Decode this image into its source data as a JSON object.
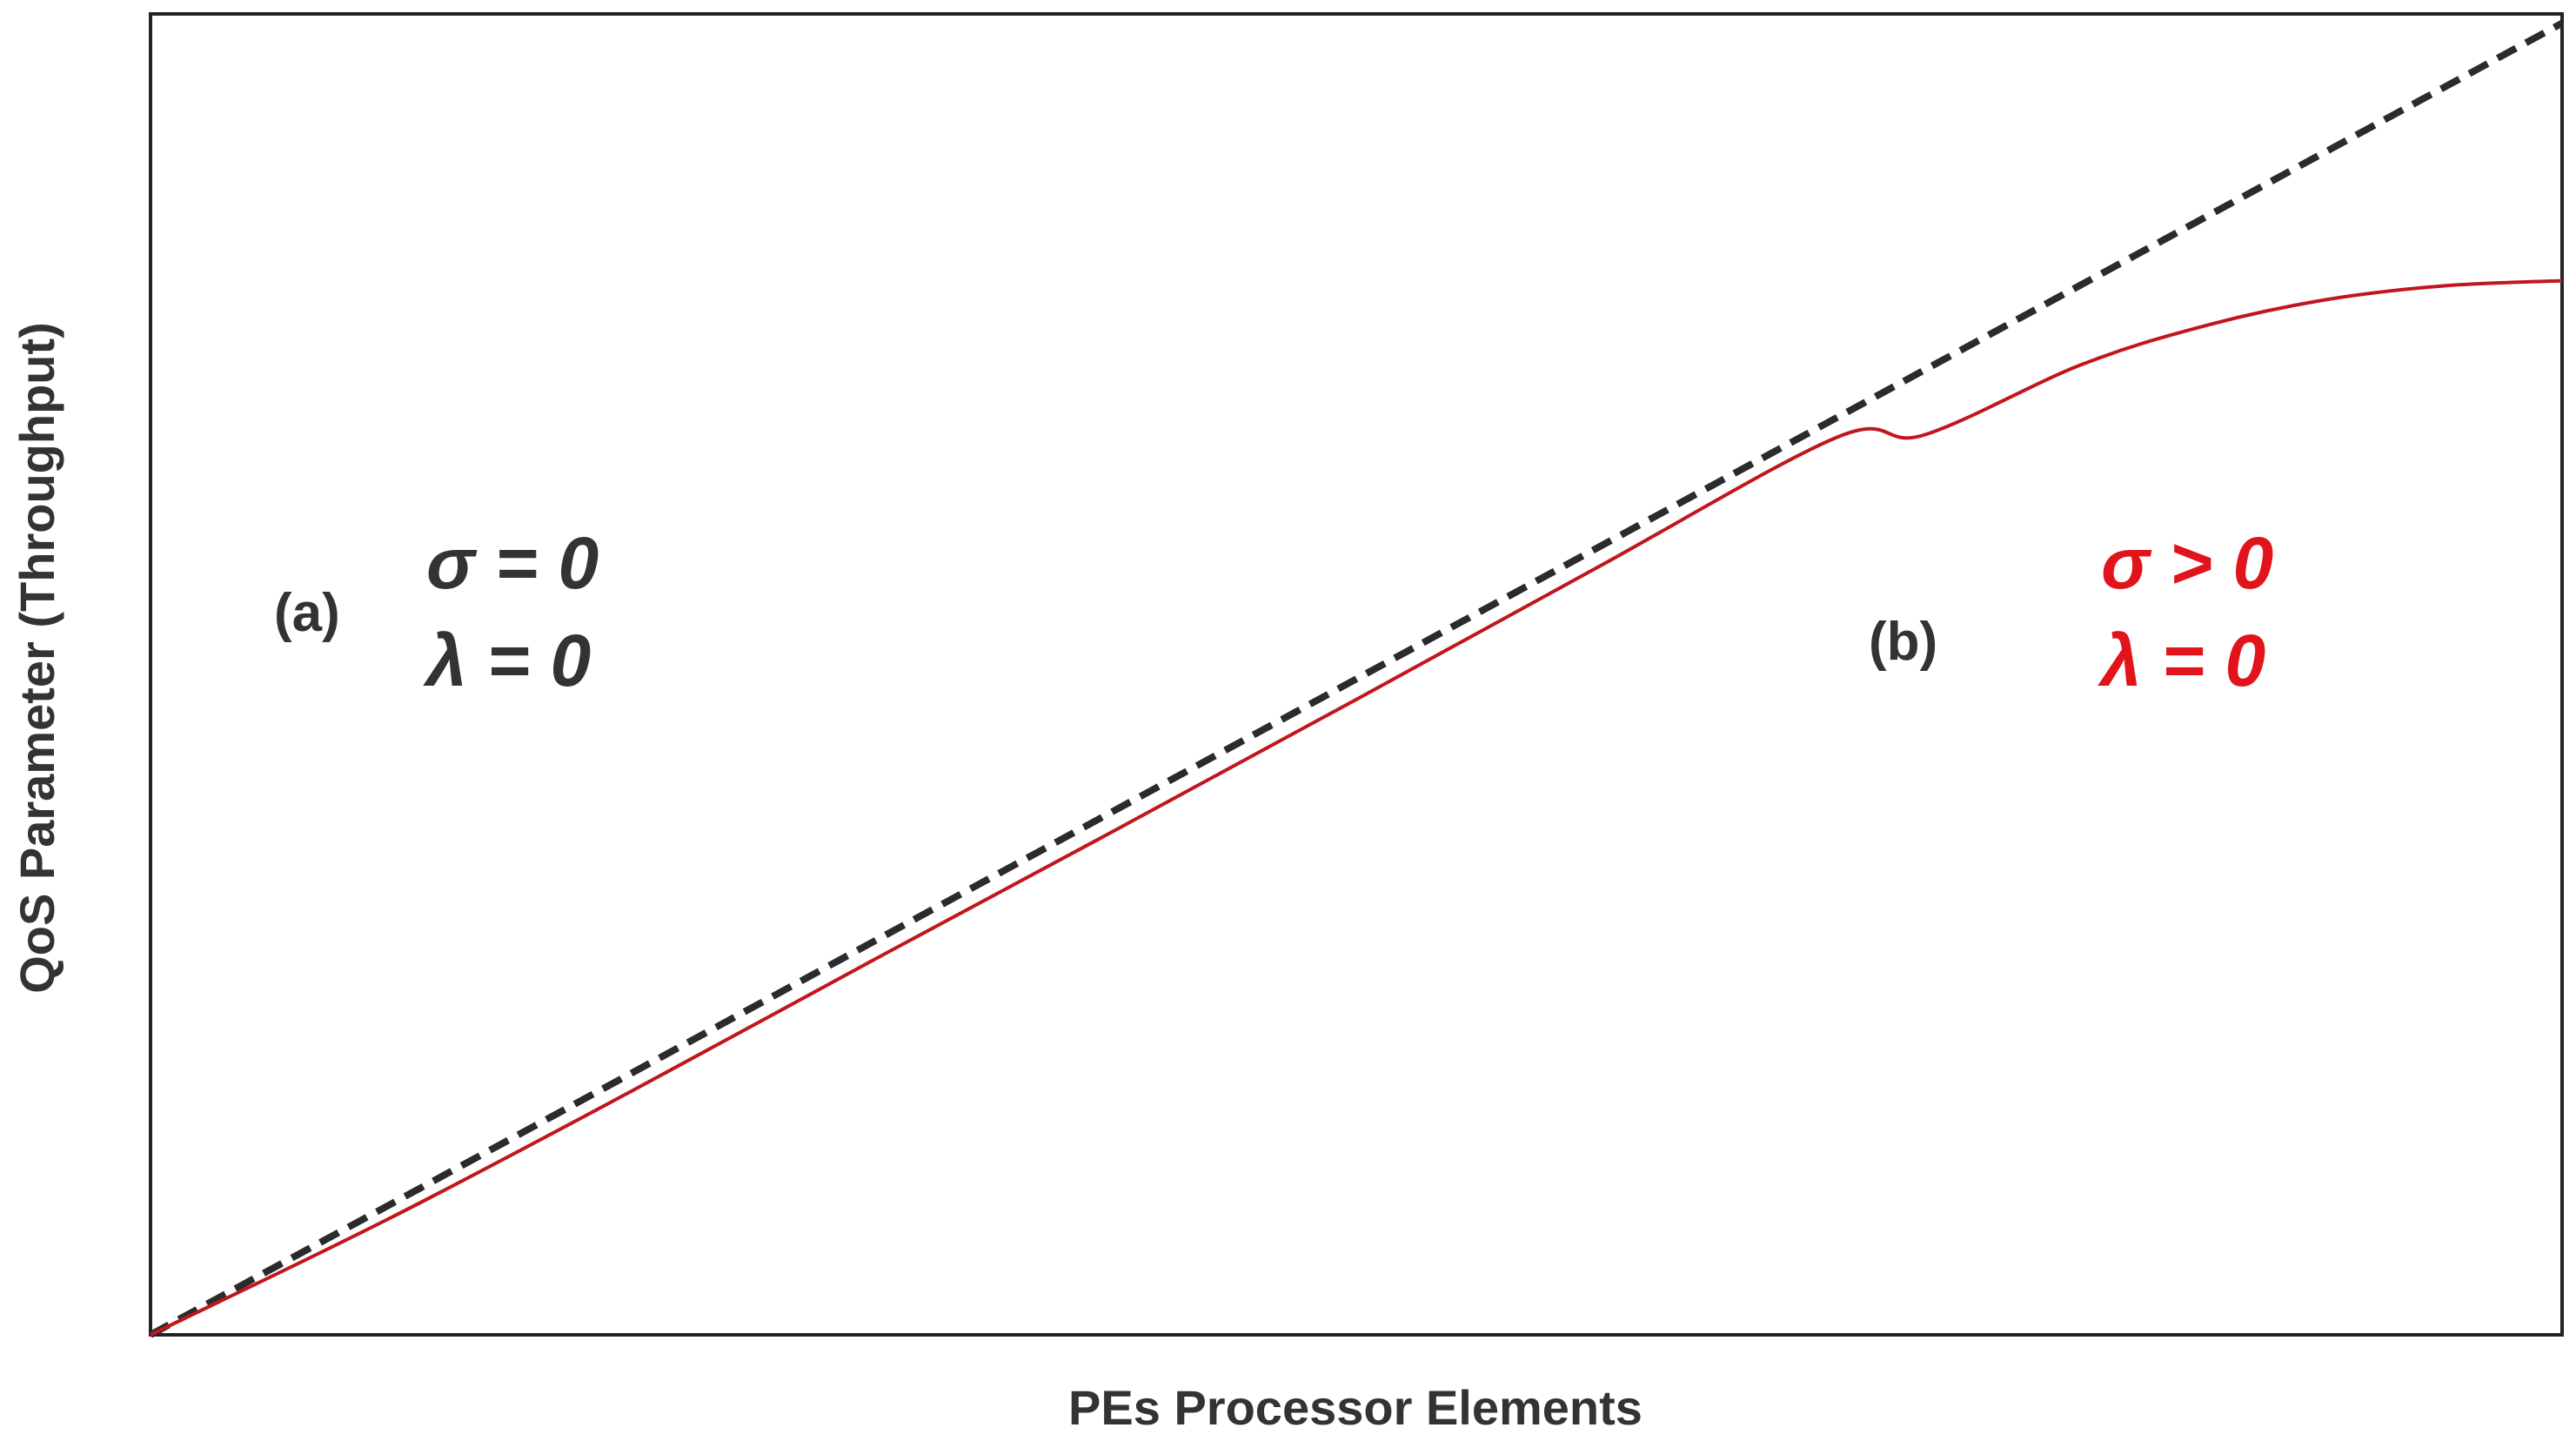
{
  "chart_data": {
    "type": "line",
    "title": "",
    "xlabel": "PEs Processor Elements",
    "ylabel": "QoS Parameter (Throughput)",
    "grid": false,
    "xlim": [
      0,
      100
    ],
    "ylim": [
      0,
      100
    ],
    "series": [
      {
        "id": "a",
        "style": "dashed",
        "color": "#2b2b2b",
        "x": [
          0,
          100
        ],
        "y": [
          0,
          99.3
        ]
      },
      {
        "id": "b",
        "style": "solid",
        "color": "#c0161c",
        "x": [
          0,
          10,
          20,
          30,
          40,
          50,
          60,
          70,
          73.5,
          80,
          85,
          90,
          95,
          100
        ],
        "y": [
          0,
          8.9,
          18.5,
          28.4,
          38.2,
          48.1,
          58.1,
          68.0,
          68.1,
          73.4,
          76.3,
          78.3,
          79.4,
          79.8
        ]
      }
    ],
    "annotations": {
      "a": {
        "tag": "(a)",
        "line1": "σ = 0",
        "line2": "λ = 0",
        "color": "#333333"
      },
      "b": {
        "tag": "(b)",
        "line1": "σ > 0",
        "line2": "λ = 0",
        "color": "#e1141b"
      }
    }
  }
}
